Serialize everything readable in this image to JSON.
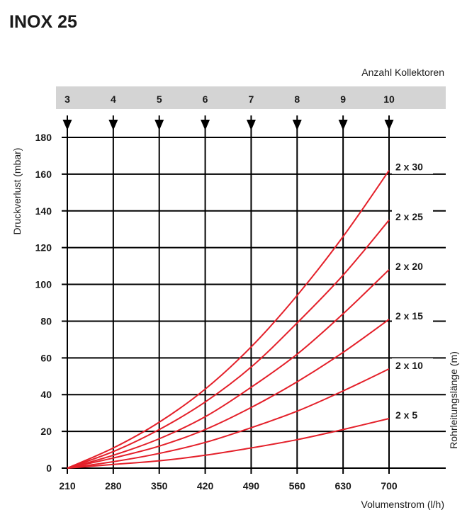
{
  "chart_data": {
    "type": "line",
    "title": "INOX 25",
    "xlabel": "Volumenstrom (l/h)",
    "ylabel": "Druckverlust (mbar)",
    "right_label": "Rohrleitungslänge (m)",
    "top_axis_label": "Anzahl Kollektoren",
    "x_ticks": [
      210,
      280,
      350,
      420,
      490,
      560,
      630,
      700
    ],
    "y_ticks": [
      0,
      20,
      40,
      60,
      80,
      100,
      120,
      140,
      160,
      180
    ],
    "top_ticks": [
      "3",
      "4",
      "5",
      "6",
      "7",
      "8",
      "9",
      "10"
    ],
    "xlim": [
      210,
      700
    ],
    "ylim": [
      0,
      180
    ],
    "grid": true,
    "series": [
      {
        "name": "2 x 30",
        "x": [
          210,
          280,
          350,
          420,
          490,
          560,
          630,
          700
        ],
        "y": [
          0,
          11,
          25,
          43,
          66,
          94,
          126,
          162
        ]
      },
      {
        "name": "2 x 25",
        "x": [
          210,
          280,
          350,
          420,
          490,
          560,
          630,
          700
        ],
        "y": [
          0,
          9,
          21,
          36,
          55,
          79,
          105,
          135
        ]
      },
      {
        "name": "2 x 20",
        "x": [
          210,
          280,
          350,
          420,
          490,
          560,
          630,
          700
        ],
        "y": [
          0,
          7,
          16,
          28,
          44,
          62,
          84,
          108
        ]
      },
      {
        "name": "2 x 15",
        "x": [
          210,
          280,
          350,
          420,
          490,
          560,
          630,
          700
        ],
        "y": [
          0,
          5.5,
          12,
          21,
          33,
          47,
          63,
          81
        ]
      },
      {
        "name": "2 x 10",
        "x": [
          210,
          280,
          350,
          420,
          490,
          560,
          630,
          700
        ],
        "y": [
          0,
          3.5,
          8,
          14,
          22,
          31,
          42,
          54
        ]
      },
      {
        "name": "2 x 5",
        "x": [
          210,
          280,
          350,
          420,
          490,
          560,
          630,
          700
        ],
        "y": [
          0,
          2,
          4,
          7,
          11,
          15.5,
          21,
          27
        ]
      }
    ],
    "colors": {
      "curve": "#e4202a",
      "band": "#d4d4d4",
      "grid": "#000000"
    }
  }
}
